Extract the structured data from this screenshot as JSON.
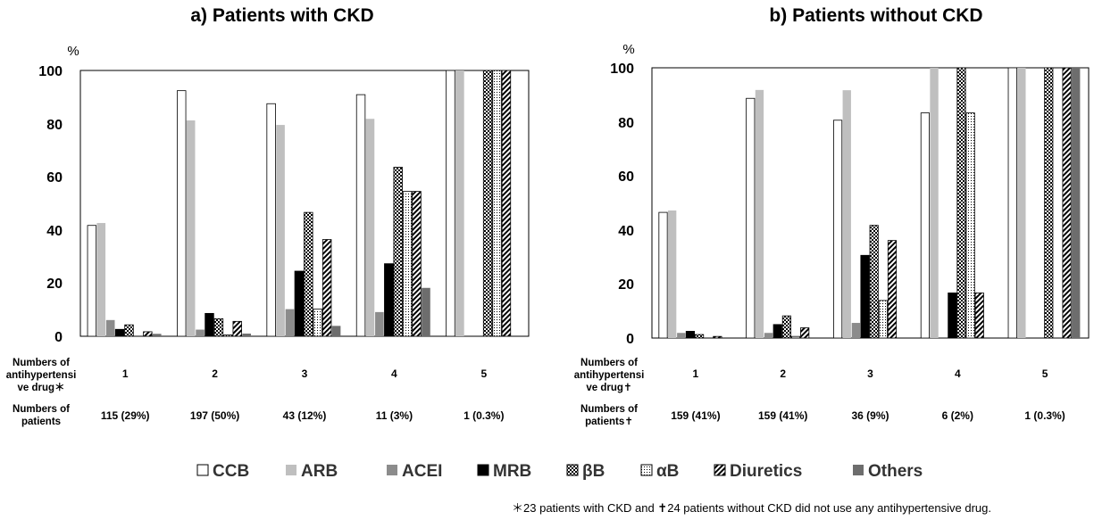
{
  "legend": [
    {
      "name": "CCB",
      "pattern": "white"
    },
    {
      "name": "ARB",
      "pattern": "lightgray"
    },
    {
      "name": "ACEI",
      "pattern": "gray"
    },
    {
      "name": "MRB",
      "pattern": "black"
    },
    {
      "name": "βB",
      "pattern": "checker"
    },
    {
      "name": "αB",
      "pattern": "dots"
    },
    {
      "name": "Diuretics",
      "pattern": "diag"
    },
    {
      "name": "Others",
      "pattern": "darkgray"
    }
  ],
  "colors": {
    "ARB": "#bfbfbf",
    "ACEI": "#8c8c8c",
    "Others": "#6d6d6d",
    "MRB": "#000000",
    "CCB": "#ffffff"
  },
  "footnote": "＊23 patients with CKD and ✝24 patients without CKD did not use any antihypertensive drug.",
  "chart_data": [
    {
      "type": "bar",
      "title": "a) Patients with CKD",
      "yunit": "%",
      "ylim": [
        0,
        100
      ],
      "yticks": [
        "0",
        "20",
        "40",
        "60",
        "80",
        "100"
      ],
      "row1_label": [
        "Numbers of",
        "antihypertensi",
        "ve drug＊"
      ],
      "row2_label": [
        "Numbers of",
        "patients"
      ],
      "categories": [
        "1",
        "2",
        "3",
        "4",
        "5"
      ],
      "patients": [
        "115 (29%)",
        "197 (50%)",
        "43 (12%)",
        "11 (3%)",
        "1 (0.3%)"
      ],
      "series": [
        {
          "name": "CCB",
          "values": [
            41.7,
            92.4,
            87.5,
            90.9,
            100
          ]
        },
        {
          "name": "ARB",
          "values": [
            42.6,
            81.2,
            79.5,
            81.8,
            100
          ]
        },
        {
          "name": "ACEI",
          "values": [
            6.1,
            2.5,
            10.2,
            9.1,
            0
          ]
        },
        {
          "name": "MRB",
          "values": [
            2.6,
            8.6,
            24.5,
            27.3,
            0
          ]
        },
        {
          "name": "βB",
          "values": [
            4.3,
            6.6,
            46.6,
            63.6,
            100
          ]
        },
        {
          "name": "αB",
          "values": [
            0,
            0.5,
            10.2,
            54.5,
            100
          ]
        },
        {
          "name": "Diuretics",
          "values": [
            1.7,
            5.6,
            36.4,
            54.5,
            100
          ]
        },
        {
          "name": "Others",
          "values": [
            0.9,
            1.0,
            3.9,
            18.2,
            0
          ]
        }
      ]
    },
    {
      "type": "bar",
      "title": "b) Patients without CKD",
      "yunit": "%",
      "ylim": [
        0,
        100
      ],
      "yticks": [
        "0",
        "20",
        "40",
        "60",
        "80",
        "100"
      ],
      "row1_label": [
        "Numbers of",
        "antihypertensi",
        "ve drug✝"
      ],
      "row2_label": [
        "Numbers of",
        "patients✝"
      ],
      "categories": [
        "1",
        "2",
        "3",
        "4",
        "5"
      ],
      "patients": [
        "159 (41%)",
        "159 (41%)",
        "36 (9%)",
        "6 (2%)",
        "1 (0.3%)"
      ],
      "series": [
        {
          "name": "CCB",
          "values": [
            46.5,
            88.7,
            80.6,
            83.3,
            100
          ]
        },
        {
          "name": "ARB",
          "values": [
            47.2,
            91.8,
            91.7,
            100,
            100
          ]
        },
        {
          "name": "ACEI",
          "values": [
            1.9,
            1.9,
            5.6,
            0,
            0
          ]
        },
        {
          "name": "MRB",
          "values": [
            2.5,
            5.0,
            30.6,
            16.7,
            0
          ]
        },
        {
          "name": "βB",
          "values": [
            1.3,
            8.2,
            41.7,
            100,
            100
          ]
        },
        {
          "name": "αB",
          "values": [
            0,
            0.6,
            13.9,
            83.3,
            0
          ]
        },
        {
          "name": "Diuretics",
          "values": [
            0.6,
            3.8,
            36.1,
            16.7,
            100
          ]
        },
        {
          "name": "Others",
          "values": [
            0,
            0,
            0,
            0,
            100
          ]
        }
      ]
    }
  ]
}
